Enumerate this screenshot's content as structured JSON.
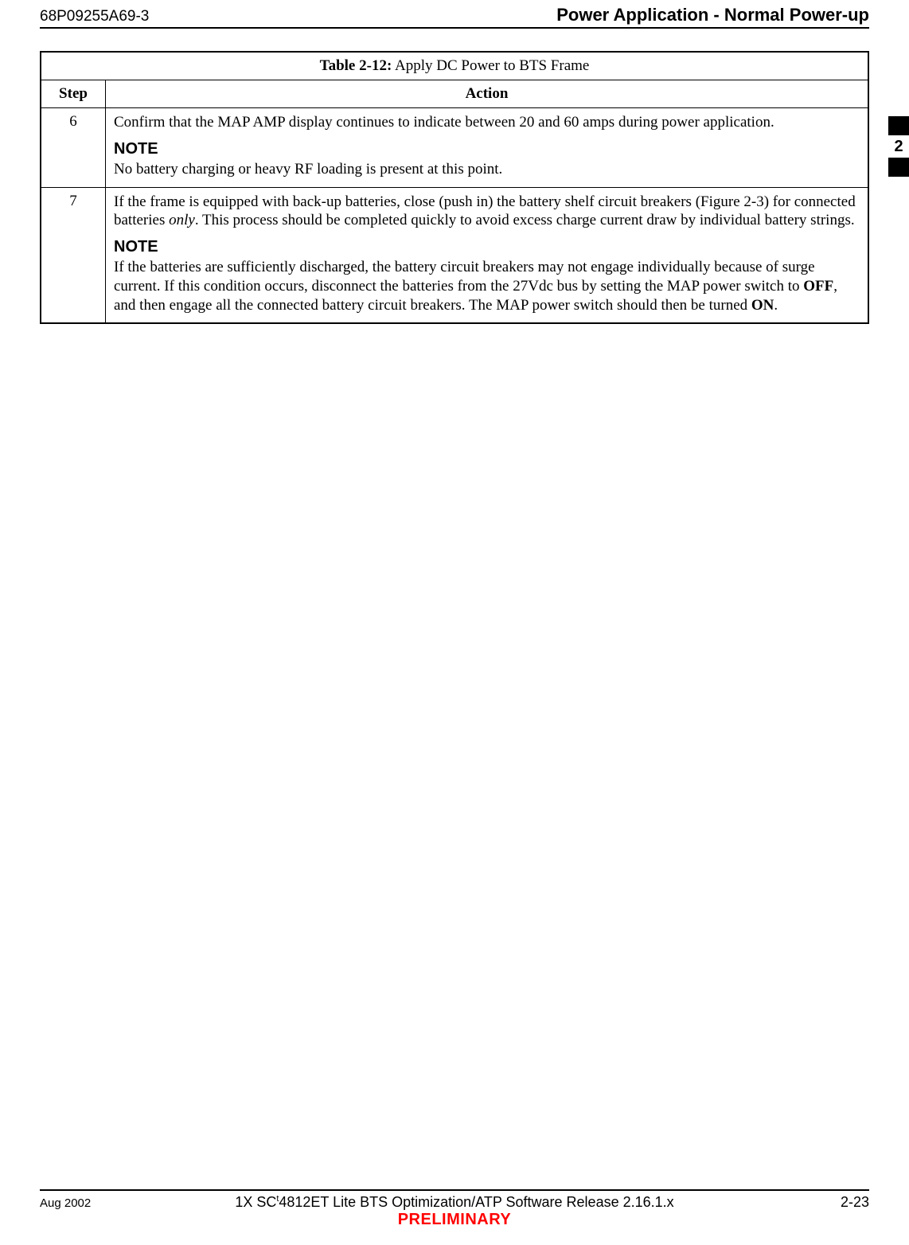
{
  "header": {
    "doc_id": "68P09255A69-3",
    "title": "Power Application - Normal Power-up"
  },
  "side_tab": {
    "number": "2"
  },
  "table": {
    "label": "Table 2-12:",
    "caption": " Apply DC Power to BTS Frame",
    "col_step": "Step",
    "col_action": "Action",
    "rows": [
      {
        "step": "6",
        "p1": "Confirm that the MAP AMP display continues to indicate between 20 and 60 amps during power application.",
        "note_head": "NOTE",
        "note_body": "No battery charging or heavy RF loading is present at this point."
      },
      {
        "step": "7",
        "p1_a": "If the frame is equipped with back-up batteries, close (push in) the battery shelf circuit breakers (Figure 2-3) for connected batteries ",
        "p1_only": "only",
        "p1_b": ". This process should be completed quickly to avoid excess charge current draw by individual battery strings.",
        "note_head": "NOTE",
        "note_a": "If the batteries are sufficiently discharged, the battery circuit breakers may not engage individually because of surge current. If this condition occurs, disconnect the batteries from the 27Vdc bus by setting the MAP power switch to  ",
        "note_off": "OFF",
        "note_b": ", and then engage all the connected battery circuit breakers. The MAP power switch should then be turned ",
        "note_on": "ON",
        "note_c": "."
      }
    ]
  },
  "footer": {
    "left": "Aug 2002",
    "center_a": "1X SC",
    "center_tm": "t",
    "center_b": "4812ET Lite BTS Optimization/ATP Software Release 2.16.1.x",
    "right": "2-23",
    "preliminary": "PRELIMINARY"
  },
  "colors": {
    "text": "#000000",
    "background": "#ffffff",
    "preliminary": "#ff0000",
    "rule": "#000000"
  }
}
